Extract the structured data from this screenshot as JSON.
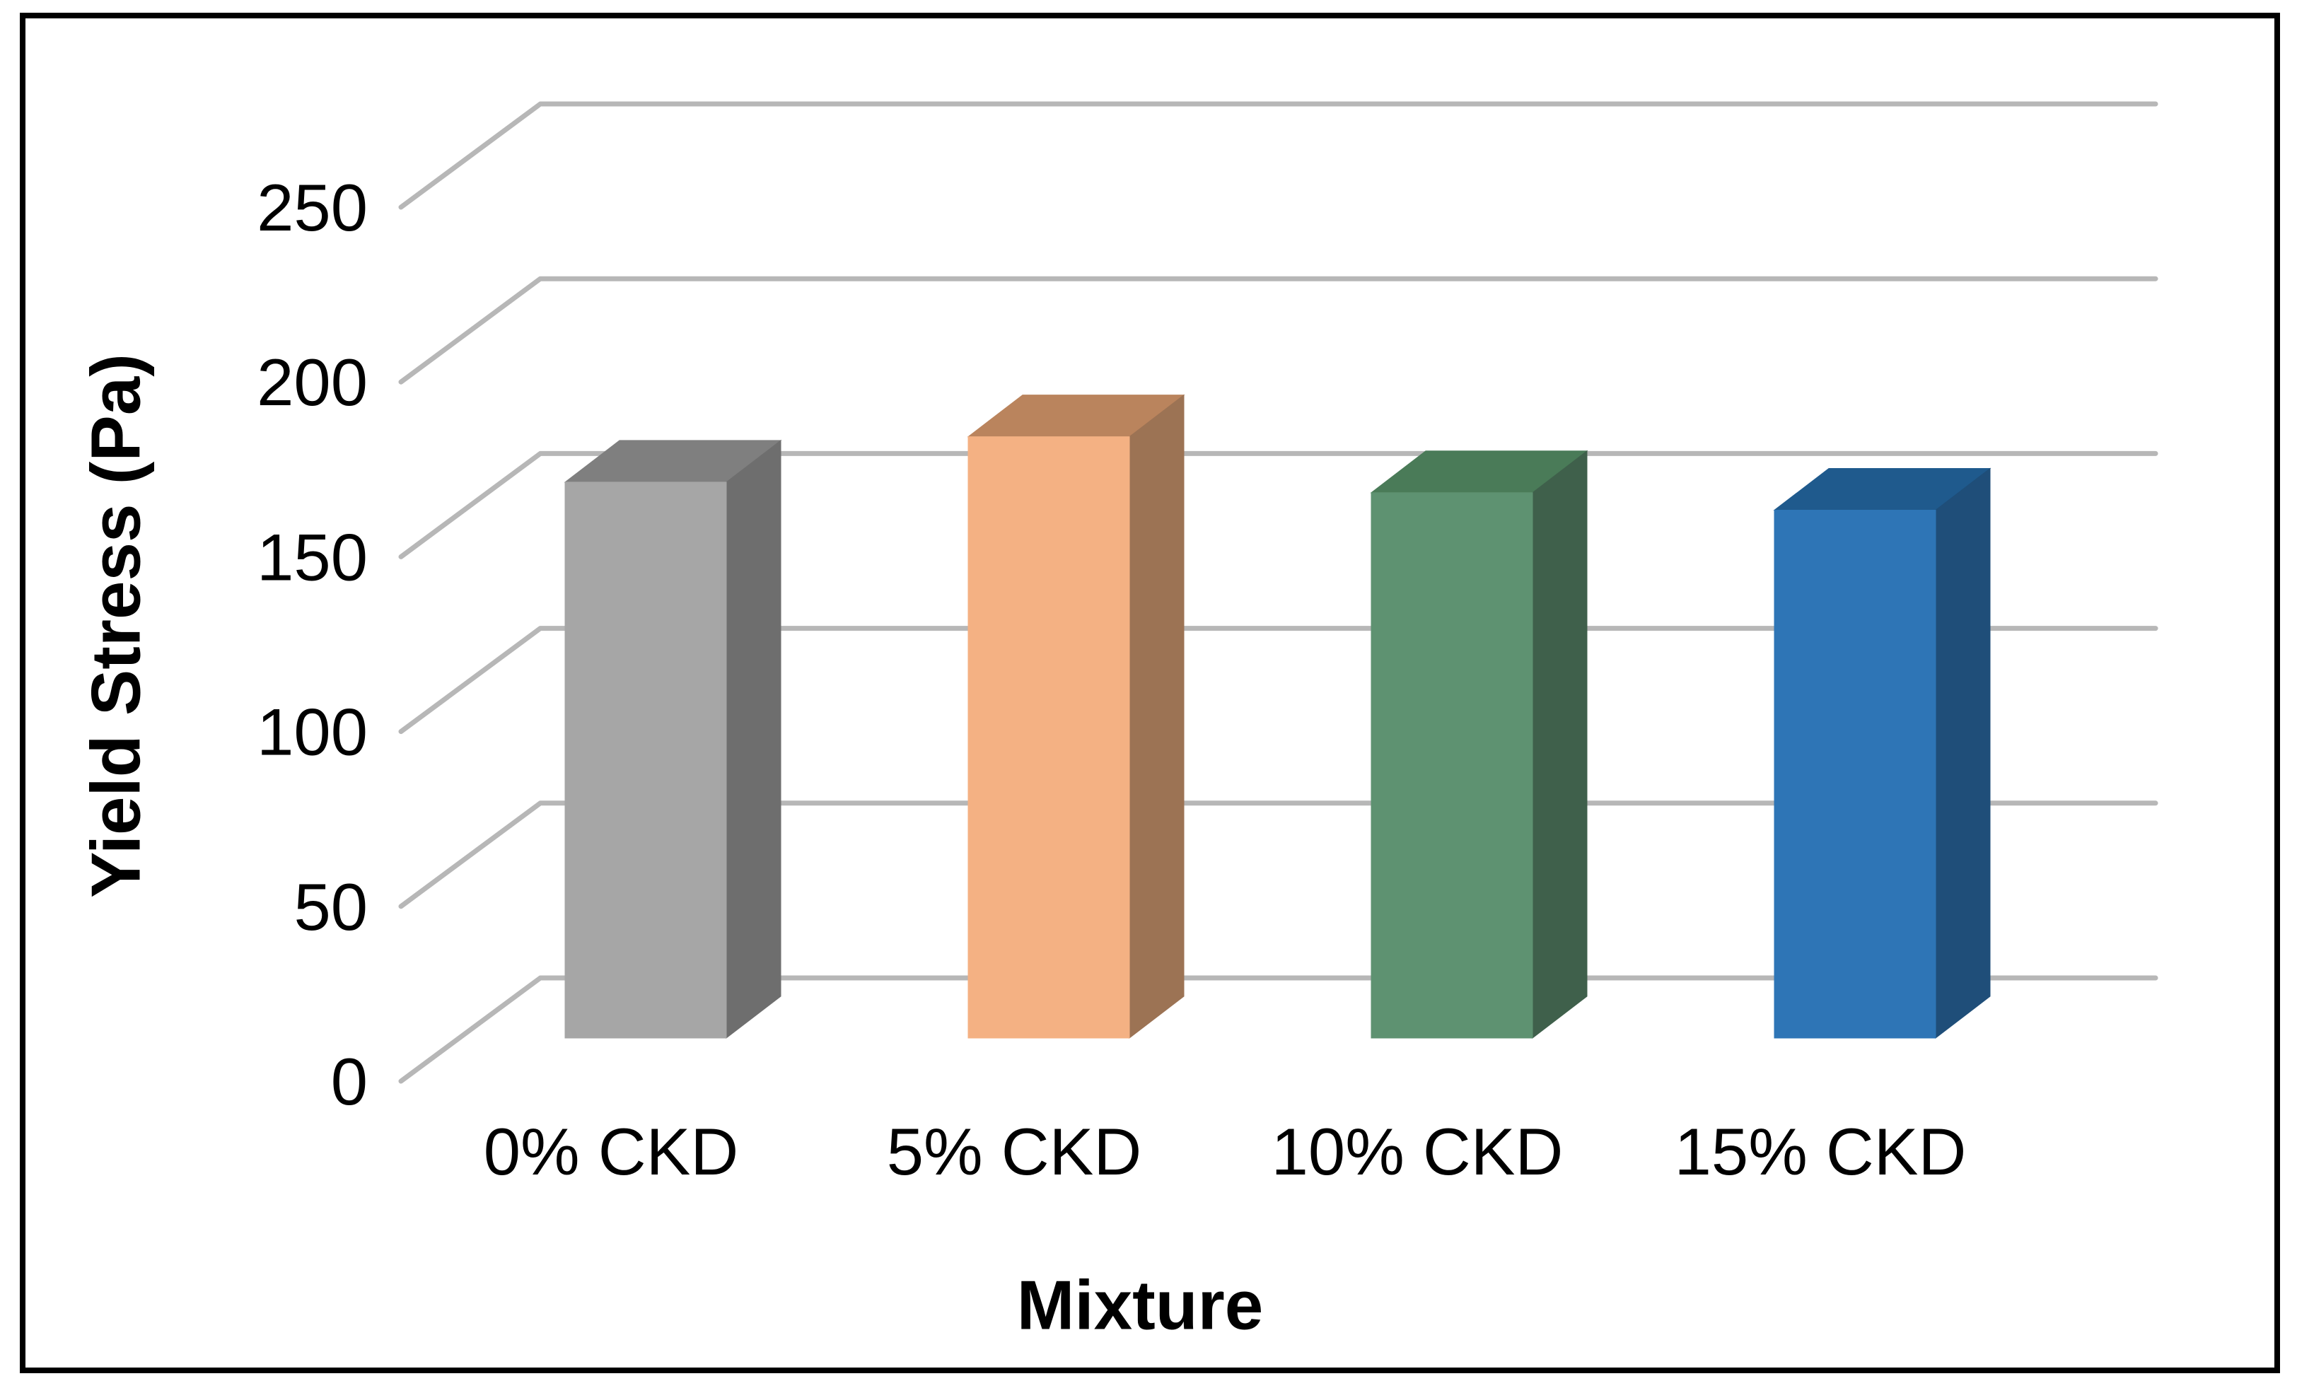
{
  "chart_data": {
    "type": "bar",
    "projection": "3d",
    "title": "",
    "xlabel": "Mixture",
    "ylabel": "Yield Stress (Pa)",
    "categories": [
      "0% CKD",
      "5% CKD",
      "10% CKD",
      "15% CKD"
    ],
    "values": [
      159,
      172,
      156,
      151
    ],
    "unit": "Pa",
    "ylim": [
      0,
      250
    ],
    "ytick_step": 50,
    "yticks": [
      0,
      50,
      100,
      150,
      200,
      250
    ],
    "grid": true,
    "legend": "none",
    "series_colors": [
      {
        "category": "0% CKD",
        "front": "#A6A6A6",
        "top": "#7F7F7F",
        "side": "#6E6E6E"
      },
      {
        "category": "5% CKD",
        "front": "#F4B183",
        "top": "#BA845D",
        "side": "#9C7354"
      },
      {
        "category": "10% CKD",
        "front": "#5E9271",
        "top": "#4A7B58",
        "side": "#3F604B"
      },
      {
        "category": "15% CKD",
        "front": "#2E75B6",
        "top": "#1F5A8D",
        "side": "#1F4E79"
      }
    ],
    "gridline_color": "#B7B7B7",
    "frame_color": "#000000",
    "text_color": "#000000",
    "background_color": "#FFFFFF"
  }
}
